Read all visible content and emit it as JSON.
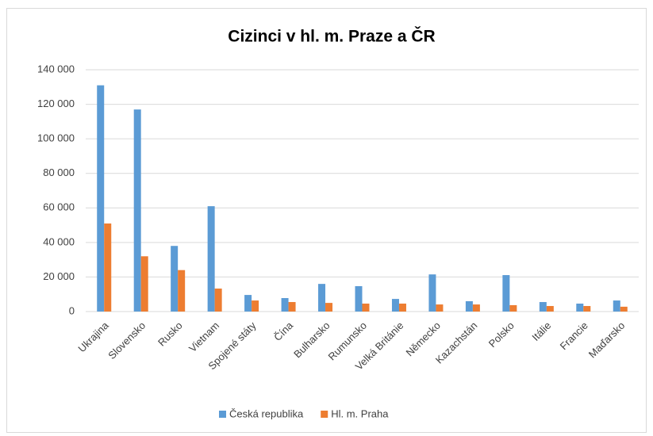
{
  "chart_data": {
    "type": "bar",
    "title": "Cizinci v hl. m. Praze a ČR",
    "categories": [
      "Ukrajina",
      "Slovensko",
      "Rusko",
      "Vietnam",
      "Spojené státy",
      "Čína",
      "Bulharsko",
      "Rumunsko",
      "Velká Británie",
      "Německo",
      "Kazachstán",
      "Polsko",
      "Itálie",
      "Francie",
      "Maďarsko"
    ],
    "series": [
      {
        "name": "Česká republika",
        "color": "#5b9bd5",
        "values": [
          131000,
          117000,
          38000,
          61000,
          9600,
          7800,
          16000,
          14700,
          7300,
          21500,
          6000,
          21100,
          5500,
          4600,
          6400
        ]
      },
      {
        "name": "Hl. m. Praha",
        "color": "#ed7d31",
        "values": [
          51000,
          32000,
          24000,
          13300,
          6400,
          5500,
          5000,
          4600,
          4600,
          4100,
          4100,
          3700,
          3200,
          3200,
          2800
        ]
      }
    ],
    "ylim": [
      0,
      140000
    ],
    "yticks": [
      {
        "value": 0,
        "label": "0"
      },
      {
        "value": 20000,
        "label": "20 000"
      },
      {
        "value": 40000,
        "label": "40 000"
      },
      {
        "value": 60000,
        "label": "60 000"
      },
      {
        "value": 80000,
        "label": "80 000"
      },
      {
        "value": 100000,
        "label": "100 000"
      },
      {
        "value": 120000,
        "label": "120 000"
      },
      {
        "value": 140000,
        "label": "140 000"
      }
    ],
    "grid": true,
    "legend": "bottom"
  }
}
